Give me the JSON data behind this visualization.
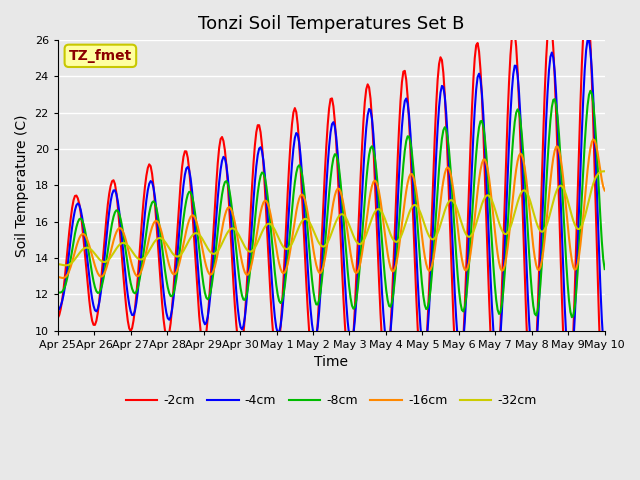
{
  "title": "Tonzi Soil Temperatures Set B",
  "xlabel": "Time",
  "ylabel": "Soil Temperature (C)",
  "annotation": "TZ_fmet",
  "annotation_color": "#8B0000",
  "annotation_bg": "#FFFFA0",
  "annotation_border": "#C8C800",
  "ylim": [
    10,
    26
  ],
  "series_colors": {
    "-2cm": "#FF0000",
    "-4cm": "#0000FF",
    "-8cm": "#00BB00",
    "-16cm": "#FF8800",
    "-32cm": "#CCCC00"
  },
  "background_color": "#E8E8E8",
  "plot_bg": "#E8E8E8",
  "tick_labels": [
    "Apr 25",
    "Apr 26",
    "Apr 27",
    "Apr 28",
    "Apr 29",
    "Apr 30",
    "May 1",
    "May 2",
    "May 3",
    "May 4",
    "May 5",
    "May 6",
    "May 7",
    "May 8",
    "May 9",
    "May 10"
  ],
  "n_points": 384
}
